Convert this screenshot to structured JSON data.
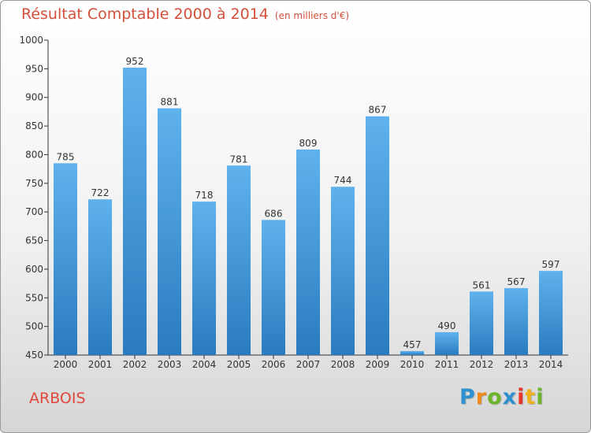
{
  "title": "Résultat Comptable 2000 à 2014",
  "subtitle": "(en milliers d'€)",
  "commune": "ARBOIS",
  "logo": {
    "letters": [
      "P",
      "r",
      "o",
      "x",
      "i",
      "t",
      "i"
    ],
    "colors": [
      "#2e8fd1",
      "#f08a1c",
      "#6cb52a",
      "#2e8fd1",
      "#e8342b",
      "#f0b21c",
      "#6cb52a"
    ]
  },
  "colors": {
    "bar_top": "#5fb2ec",
    "bar_bottom": "#2a7bbf",
    "title": "#d3503a"
  },
  "chart_data": {
    "type": "bar",
    "title": "Résultat Comptable 2000 à 2014",
    "subtitle": "(en milliers d'€)",
    "xlabel": "",
    "ylabel": "",
    "ylim": [
      450,
      1000
    ],
    "yticks": [
      450,
      500,
      550,
      600,
      650,
      700,
      750,
      800,
      850,
      900,
      950,
      1000
    ],
    "categories": [
      "2000",
      "2001",
      "2002",
      "2003",
      "2004",
      "2005",
      "2006",
      "2007",
      "2008",
      "2009",
      "2010",
      "2011",
      "2012",
      "2013",
      "2014"
    ],
    "values": [
      785,
      722,
      952,
      881,
      718,
      781,
      686,
      809,
      744,
      867,
      457,
      490,
      561,
      567,
      597
    ],
    "grid": false,
    "legend": "none"
  }
}
